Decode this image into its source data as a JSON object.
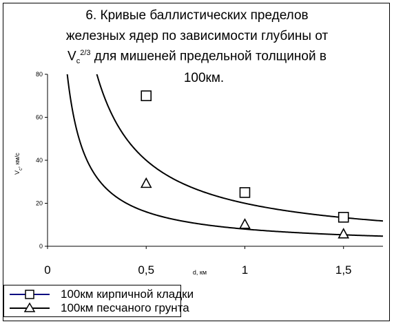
{
  "chart_data": {
    "type": "scatter",
    "title_lines": [
      "6. Кривые баллистических пределов",
      "железных ядер по зависимости глубины от",
      "для мишеней предельной толщиной в",
      "100км."
    ],
    "title_v_base": "V",
    "title_v_sub": "c",
    "title_v_sup": "2/3",
    "ylabel_base": "V",
    "ylabel_sub": "c",
    "ylabel_rest": ", км/с",
    "xlabel": "d, км",
    "xlim": [
      0,
      1.7
    ],
    "ylim": [
      0,
      80
    ],
    "x_ticks": [
      "0",
      "0,5",
      "1",
      "1,5"
    ],
    "x_tick_values": [
      0,
      0.5,
      1,
      1.5
    ],
    "y_ticks": [
      "0",
      "20",
      "40",
      "60",
      "80"
    ],
    "y_tick_values": [
      0,
      20,
      40,
      60,
      80
    ],
    "grid": false,
    "series": [
      {
        "name": "100км кирпичной кладки",
        "marker": "square",
        "x": [
          0.5,
          1.0,
          1.5
        ],
        "y": [
          70,
          25,
          13.5
        ],
        "curve_k": 20
      },
      {
        "name": "100км песчаного грунта",
        "marker": "triangle",
        "x": [
          0.5,
          1.0,
          1.5
        ],
        "y": [
          29,
          10,
          5.5
        ],
        "curve_k": 8
      }
    ],
    "legend_position": "bottom-left"
  },
  "colors": {
    "line": "#000000",
    "legend_line_series1": "#000080",
    "legend_line_series2": "#000000",
    "background": "#ffffff"
  }
}
